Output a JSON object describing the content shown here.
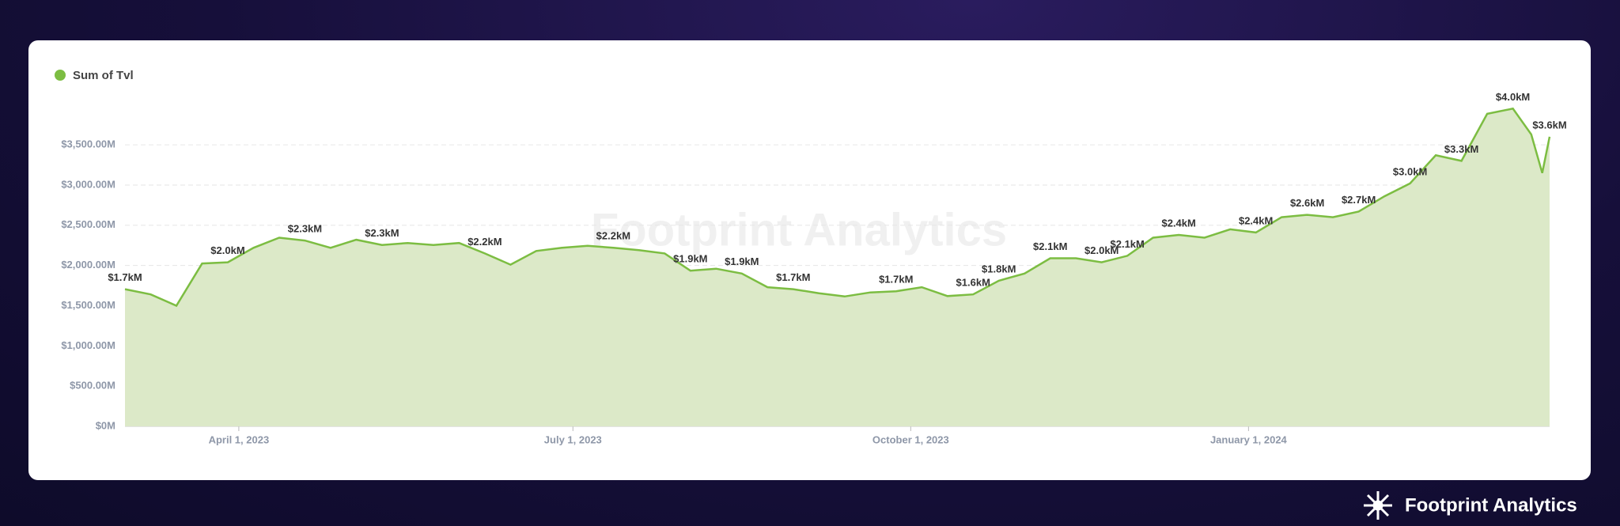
{
  "chart_data": {
    "type": "area",
    "legend": "Sum of Tvl",
    "watermark": "Footprint Analytics",
    "brand": "Footprint Analytics",
    "color": "#7cbd42",
    "fill": "#dce9c8",
    "grid": true,
    "x": [
      "2023-03-01",
      "2023-03-08",
      "2023-03-15",
      "2023-03-22",
      "2023-03-29",
      "2023-04-05",
      "2023-04-12",
      "2023-04-19",
      "2023-04-26",
      "2023-05-03",
      "2023-05-10",
      "2023-05-17",
      "2023-05-24",
      "2023-05-31",
      "2023-06-07",
      "2023-06-14",
      "2023-06-21",
      "2023-06-28",
      "2023-07-05",
      "2023-07-12",
      "2023-07-19",
      "2023-07-26",
      "2023-08-02",
      "2023-08-09",
      "2023-08-16",
      "2023-08-23",
      "2023-08-30",
      "2023-09-06",
      "2023-09-13",
      "2023-09-20",
      "2023-09-27",
      "2023-10-04",
      "2023-10-11",
      "2023-10-18",
      "2023-10-25",
      "2023-11-01",
      "2023-11-08",
      "2023-11-15",
      "2023-11-22",
      "2023-11-29",
      "2023-12-06",
      "2023-12-13",
      "2023-12-20",
      "2023-12-27",
      "2024-01-03",
      "2024-01-10",
      "2024-01-17",
      "2024-01-24",
      "2024-01-31",
      "2024-02-07",
      "2024-02-14",
      "2024-02-21",
      "2024-02-28",
      "2024-03-06",
      "2024-03-13",
      "2024-03-18",
      "2024-03-21",
      "2024-03-23"
    ],
    "values": [
      1705,
      1640,
      1500,
      2025,
      2040,
      2220,
      2345,
      2310,
      2220,
      2320,
      2255,
      2280,
      2255,
      2280,
      2150,
      2010,
      2180,
      2220,
      2245,
      2220,
      2190,
      2150,
      1935,
      1960,
      1900,
      1730,
      1705,
      1655,
      1615,
      1665,
      1680,
      1730,
      1620,
      1640,
      1810,
      1900,
      2090,
      2090,
      2040,
      2120,
      2345,
      2380,
      2345,
      2450,
      2410,
      2600,
      2630,
      2600,
      2670,
      2860,
      3020,
      3370,
      3300,
      3885,
      3950,
      3630,
      3150,
      3600
    ],
    "value_labels": [
      "$1.7kM",
      null,
      null,
      null,
      "$2.0kM",
      null,
      null,
      "$2.3kM",
      null,
      null,
      "$2.3kM",
      null,
      null,
      null,
      "$2.2kM",
      null,
      null,
      null,
      null,
      "$2.2kM",
      null,
      null,
      "$1.9kM",
      null,
      "$1.9kM",
      null,
      "$1.7kM",
      null,
      null,
      null,
      "$1.7kM",
      null,
      null,
      "$1.6kM",
      "$1.8kM",
      null,
      "$2.1kM",
      null,
      "$2.0kM",
      "$2.1kM",
      null,
      "$2.4kM",
      null,
      null,
      "$2.4kM",
      null,
      "$2.6kM",
      null,
      "$2.7kM",
      null,
      "$3.0kM",
      null,
      "$3.3kM",
      null,
      "$4.0kM",
      null,
      null,
      "$3.6kM"
    ],
    "xlim": [
      "2023-03-01",
      "2024-03-23"
    ],
    "xticks": [
      {
        "value": "2023-04-01",
        "label": "April 1, 2023"
      },
      {
        "value": "2023-07-01",
        "label": "July 1, 2023"
      },
      {
        "value": "2023-10-01",
        "label": "October 1, 2023"
      },
      {
        "value": "2024-01-01",
        "label": "January 1, 2024"
      }
    ],
    "ylim": [
      0,
      4150
    ],
    "yticks": [
      {
        "value": 0,
        "label": "$0M"
      },
      {
        "value": 500,
        "label": "$500.00M"
      },
      {
        "value": 1000,
        "label": "$1,000.00M"
      },
      {
        "value": 1500,
        "label": "$1,500.00M"
      },
      {
        "value": 2000,
        "label": "$2,000.00M"
      },
      {
        "value": 2500,
        "label": "$2,500.00M"
      },
      {
        "value": 3000,
        "label": "$3,000.00M"
      },
      {
        "value": 3500,
        "label": "$3,500.00M"
      }
    ]
  }
}
